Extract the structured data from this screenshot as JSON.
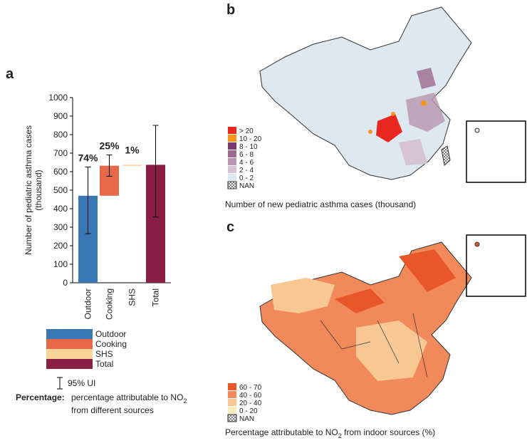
{
  "chart_data": [
    {
      "type": "waterfall",
      "panel_label": "a",
      "ylabel": [
        "Number of pediatric asthma cases",
        "(thousand)"
      ],
      "categories": [
        "Outdoor",
        "Cooking",
        "SHS",
        "Total"
      ],
      "values": [
        470,
        162,
        5,
        637
      ],
      "ci_low": [
        265,
        575,
        null,
        355
      ],
      "ci_high": [
        625,
        690,
        null,
        850
      ],
      "annotations": [
        "74%",
        "25%",
        "1%",
        null
      ],
      "colors": [
        "#3a78b5",
        "#e8694a",
        "#f6d49a",
        "#8b1e45"
      ],
      "ylim": [
        0,
        1000
      ],
      "yticks": [
        0,
        100,
        200,
        300,
        400,
        500,
        600,
        700,
        800,
        900,
        1000
      ],
      "error_label": "95% UI",
      "percentage_label": "Percentage:",
      "percentage_note": [
        "percentage attributable to NO",
        "2",
        "from different sources"
      ]
    },
    {
      "type": "map",
      "panel_label": "b",
      "legend": [
        {
          "name": "> 20",
          "color": "#e8281e"
        },
        {
          "name": "10 - 20",
          "color": "#f7941d"
        },
        {
          "name": "8 - 10",
          "color": "#7b3a6e"
        },
        {
          "name": "6 - 8",
          "color": "#9c6a8f"
        },
        {
          "name": "4 - 6",
          "color": "#b995b0"
        },
        {
          "name": "2 - 4",
          "color": "#d6c3d3"
        },
        {
          "name": "0 - 2",
          "color": "#dde8f0"
        },
        {
          "name": "NAN"
        }
      ],
      "caption": [
        "Number of  new pediatric asthma cases (thousand)"
      ]
    },
    {
      "type": "map",
      "panel_label": "c",
      "legend": [
        {
          "name": "60 - 70",
          "color": "#e8562a"
        },
        {
          "name": "40 - 60",
          "color": "#f1895a"
        },
        {
          "name": "20 - 40",
          "color": "#f7c893"
        },
        {
          "name": "0 - 20",
          "color": "#fbecc0"
        },
        {
          "name": "NAN"
        }
      ],
      "caption": [
        "Percentage attributable to NO",
        "2",
        " from indoor sources (%)"
      ]
    }
  ]
}
